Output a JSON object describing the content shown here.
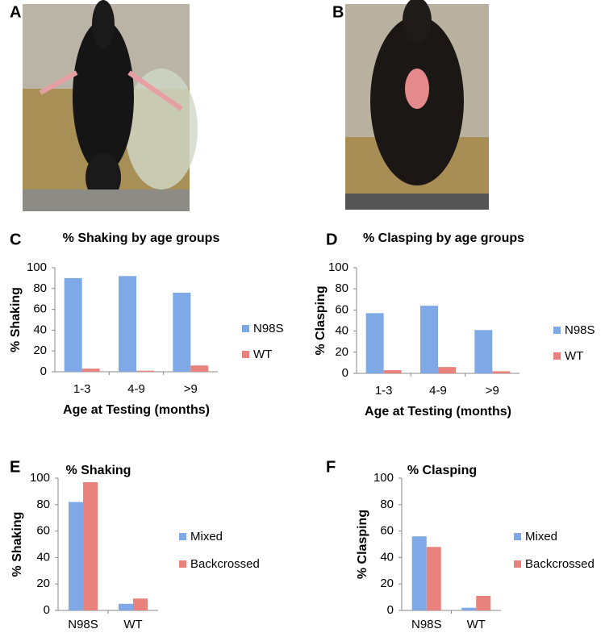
{
  "photos": [
    {
      "panel": "A"
    },
    {
      "panel": "B"
    }
  ],
  "chart_data": [
    {
      "type": "bar",
      "panel": "C",
      "title": "% Shaking by age groups",
      "y_label": "% Shaking",
      "x_label": "Age at Testing (months)",
      "categories": [
        "1-3",
        "4-9",
        ">9"
      ],
      "series": [
        {
          "name": "N98S",
          "color": "#7fa9e6",
          "values": [
            90,
            92,
            76
          ]
        },
        {
          "name": "WT",
          "color": "#e9827c",
          "values": [
            3,
            1,
            6
          ]
        }
      ],
      "ylim": [
        0,
        100
      ],
      "yticks": [
        0,
        20,
        40,
        60,
        80,
        100
      ],
      "legend": "right"
    },
    {
      "type": "bar",
      "panel": "D",
      "title": "% Clasping by age groups",
      "y_label": "% Clasping",
      "x_label": "Age at Testing (months)",
      "categories": [
        "1-3",
        "4-9",
        ">9"
      ],
      "series": [
        {
          "name": "N98S",
          "color": "#7fa9e6",
          "values": [
            57,
            64,
            41
          ]
        },
        {
          "name": "WT",
          "color": "#e9827c",
          "values": [
            3,
            6,
            2
          ]
        }
      ],
      "ylim": [
        0,
        100
      ],
      "yticks": [
        0,
        20,
        40,
        60,
        80,
        100
      ],
      "legend": "right"
    },
    {
      "type": "bar",
      "panel": "E",
      "title": "% Shaking",
      "y_label": "% Shaking",
      "categories": [
        "N98S",
        "WT"
      ],
      "series": [
        {
          "name": "Mixed",
          "color": "#7fa9e6",
          "values": [
            82,
            5
          ]
        },
        {
          "name": "Backcrossed",
          "color": "#e9827c",
          "values": [
            97,
            9
          ]
        }
      ],
      "ylim": [
        0,
        100
      ],
      "yticks": [
        0,
        20,
        40,
        60,
        80,
        100
      ],
      "legend": "right"
    },
    {
      "type": "bar",
      "panel": "F",
      "title": "% Clasping",
      "y_label": "% Clasping",
      "categories": [
        "N98S",
        "WT"
      ],
      "series": [
        {
          "name": "Mixed",
          "color": "#7fa9e6",
          "values": [
            56,
            2
          ]
        },
        {
          "name": "Backcrossed",
          "color": "#e9827c",
          "values": [
            48,
            11
          ]
        }
      ],
      "ylim": [
        0,
        100
      ],
      "yticks": [
        0,
        20,
        40,
        60,
        80,
        100
      ],
      "legend": "right"
    }
  ]
}
